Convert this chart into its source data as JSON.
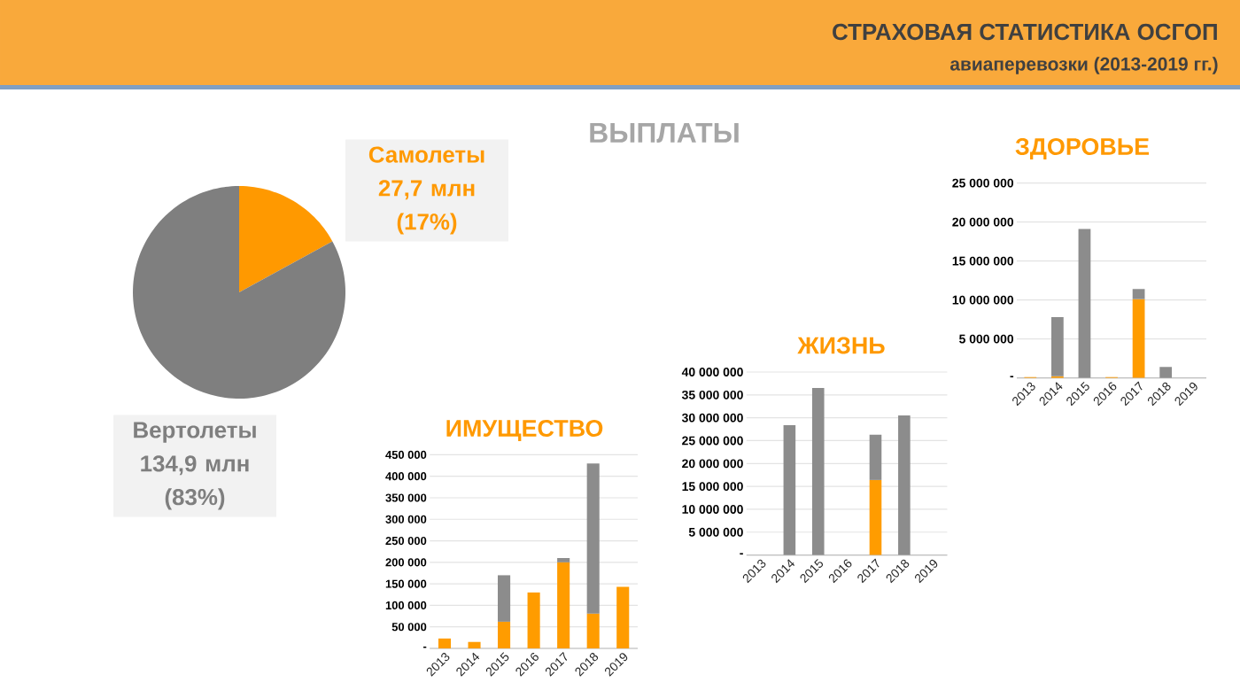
{
  "chart_data": [
    {
      "type": "other",
      "title": "СТРАХОВАЯ СТАТИСТИКА ОСГОП",
      "subtitle": "авиаперевозки (2013-2019 гг.)",
      "annotations": [
        "ВЫПЛАТЫ"
      ]
    },
    {
      "type": "pie",
      "categories": [
        "Самолеты",
        "Вертолеты"
      ],
      "values": [
        27.7,
        134.9
      ],
      "value_labels": [
        "27,7 млн (17%)",
        "134,9 млн (83%)"
      ],
      "colors": [
        "#ff9900",
        "#7f7f7f"
      ]
    },
    {
      "type": "bar",
      "title": "ИМУЩЕСТВО",
      "categories": [
        "2013",
        "2014",
        "2015",
        "2016",
        "2017",
        "2018",
        "2019"
      ],
      "stacked": true,
      "series": [
        {
          "color": "#ff9c00",
          "values": [
            23000,
            15000,
            62000,
            130000,
            200000,
            81000,
            143000
          ]
        },
        {
          "color": "#8c8c8c",
          "values": [
            null,
            null,
            108000,
            null,
            10000,
            349000,
            null
          ]
        }
      ],
      "ylim": [
        0,
        450000
      ],
      "yticks": [
        {
          "value": 0,
          "label": "-"
        },
        {
          "value": 50000,
          "label": "50 000"
        },
        {
          "value": 100000,
          "label": "100 000"
        },
        {
          "value": 150000,
          "label": "150 000"
        },
        {
          "value": 200000,
          "label": "200 000"
        },
        {
          "value": 250000,
          "label": "250 000"
        },
        {
          "value": 300000,
          "label": "300 000"
        },
        {
          "value": 350000,
          "label": "350 000"
        },
        {
          "value": 400000,
          "label": "400 000"
        },
        {
          "value": 450000,
          "label": "450 000"
        }
      ],
      "grid": "y"
    },
    {
      "type": "bar",
      "title": "ЖИЗНЬ",
      "categories": [
        "2013",
        "2014",
        "2015",
        "2016",
        "2017",
        "2018",
        "2019"
      ],
      "stacked": true,
      "series": [
        {
          "color": "#ff9c00",
          "values": [
            null,
            null,
            null,
            null,
            16400000,
            null,
            null
          ]
        },
        {
          "color": "#8c8c8c",
          "values": [
            null,
            28400000,
            36500000,
            null,
            9900000,
            30500000,
            null
          ]
        }
      ],
      "ylim": [
        0,
        40000000
      ],
      "yticks": [
        {
          "value": 0,
          "label": "-"
        },
        {
          "value": 5000000,
          "label": "5 000 000"
        },
        {
          "value": 10000000,
          "label": "10 000 000"
        },
        {
          "value": 15000000,
          "label": "15 000 000"
        },
        {
          "value": 20000000,
          "label": "20 000 000"
        },
        {
          "value": 25000000,
          "label": "25 000 000"
        },
        {
          "value": 30000000,
          "label": "30 000 000"
        },
        {
          "value": 35000000,
          "label": "35 000 000"
        },
        {
          "value": 40000000,
          "label": "40 000 000"
        }
      ],
      "grid": "y"
    },
    {
      "type": "bar",
      "title": "ЗДОРОВЬЕ",
      "categories": [
        "2013",
        "2014",
        "2015",
        "2016",
        "2017",
        "2018",
        "2019"
      ],
      "stacked": true,
      "series": [
        {
          "color": "#ff9c00",
          "values": [
            100000,
            200000,
            null,
            100000,
            10100000,
            null,
            null
          ]
        },
        {
          "color": "#8c8c8c",
          "values": [
            null,
            7600000,
            19100000,
            null,
            1300000,
            1400000,
            null
          ]
        }
      ],
      "ylim": [
        0,
        25000000
      ],
      "yticks": [
        {
          "value": 0,
          "label": "-"
        },
        {
          "value": 5000000,
          "label": "5 000 000"
        },
        {
          "value": 10000000,
          "label": "10 000 000"
        },
        {
          "value": 15000000,
          "label": "15 000 000"
        },
        {
          "value": 20000000,
          "label": "20 000 000"
        },
        {
          "value": 25000000,
          "label": "25 000 000"
        }
      ],
      "grid": "y"
    }
  ]
}
